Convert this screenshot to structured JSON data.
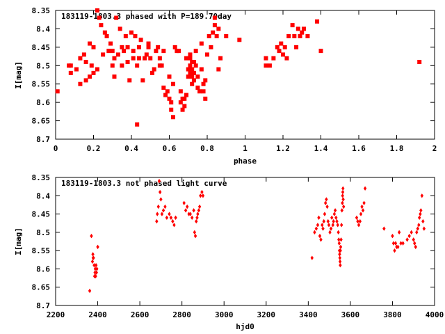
{
  "chart_data": [
    {
      "type": "scatter",
      "title": "183119-1803.3 phased with P=189.70day",
      "xlabel": "phase",
      "ylabel": "I[mag]",
      "xlim": [
        0,
        2
      ],
      "ylim": [
        8.7,
        8.35
      ],
      "y_inverted": true,
      "marker": "star",
      "xticks": [
        "0",
        "0.2",
        "0.4",
        "0.6",
        "0.8",
        "1",
        "1.2",
        "1.4",
        "1.6",
        "1.8",
        "2"
      ],
      "yticks": [
        "8.35",
        "8.4",
        "8.45",
        "8.5",
        "8.55",
        "8.6",
        "8.65",
        "8.7"
      ],
      "color": "#ff0000",
      "points": [
        [
          0.01,
          8.57
        ],
        [
          0.07,
          8.5
        ],
        [
          0.08,
          8.52
        ],
        [
          0.08,
          8.5
        ],
        [
          0.11,
          8.51
        ],
        [
          0.13,
          8.48
        ],
        [
          0.13,
          8.55
        ],
        [
          0.15,
          8.47
        ],
        [
          0.16,
          8.49
        ],
        [
          0.16,
          8.54
        ],
        [
          0.18,
          8.53
        ],
        [
          0.18,
          8.44
        ],
        [
          0.19,
          8.5
        ],
        [
          0.2,
          8.52
        ],
        [
          0.2,
          8.45
        ],
        [
          0.22,
          8.51
        ],
        [
          0.22,
          8.35
        ],
        [
          0.23,
          8.37
        ],
        [
          0.24,
          8.39
        ],
        [
          0.25,
          8.47
        ],
        [
          0.26,
          8.41
        ],
        [
          0.27,
          8.42
        ],
        [
          0.28,
          8.46
        ],
        [
          0.29,
          8.44
        ],
        [
          0.3,
          8.46
        ],
        [
          0.3,
          8.5
        ],
        [
          0.31,
          8.48
        ],
        [
          0.31,
          8.53
        ],
        [
          0.32,
          8.37
        ],
        [
          0.33,
          8.47
        ],
        [
          0.34,
          8.4
        ],
        [
          0.35,
          8.45
        ],
        [
          0.35,
          8.5
        ],
        [
          0.36,
          8.46
        ],
        [
          0.37,
          8.42
        ],
        [
          0.38,
          8.45
        ],
        [
          0.38,
          8.49
        ],
        [
          0.39,
          8.54
        ],
        [
          0.4,
          8.41
        ],
        [
          0.41,
          8.46
        ],
        [
          0.41,
          8.48
        ],
        [
          0.42,
          8.42
        ],
        [
          0.43,
          8.5
        ],
        [
          0.43,
          8.66
        ],
        [
          0.44,
          8.48
        ],
        [
          0.44,
          8.45
        ],
        [
          0.45,
          8.43
        ],
        [
          0.46,
          8.54
        ],
        [
          0.47,
          8.48
        ],
        [
          0.48,
          8.47
        ],
        [
          0.49,
          8.44
        ],
        [
          0.49,
          8.45
        ],
        [
          0.5,
          8.48
        ],
        [
          0.51,
          8.52
        ],
        [
          0.52,
          8.51
        ],
        [
          0.53,
          8.46
        ],
        [
          0.54,
          8.45
        ],
        [
          0.55,
          8.48
        ],
        [
          0.55,
          8.5
        ],
        [
          0.56,
          8.5
        ],
        [
          0.57,
          8.56
        ],
        [
          0.57,
          8.46
        ],
        [
          0.58,
          8.58
        ],
        [
          0.59,
          8.57
        ],
        [
          0.6,
          8.53
        ],
        [
          0.6,
          8.59
        ],
        [
          0.61,
          8.6
        ],
        [
          0.61,
          8.62
        ],
        [
          0.62,
          8.64
        ],
        [
          0.62,
          8.55
        ],
        [
          0.63,
          8.45
        ],
        [
          0.64,
          8.46
        ],
        [
          0.65,
          8.46
        ],
        [
          0.66,
          8.57
        ],
        [
          0.66,
          8.6
        ],
        [
          0.67,
          8.62
        ],
        [
          0.67,
          8.59
        ],
        [
          0.68,
          8.61
        ],
        [
          0.68,
          8.59
        ],
        [
          0.69,
          8.58
        ],
        [
          0.69,
          8.48
        ],
        [
          0.7,
          8.51
        ],
        [
          0.7,
          8.53
        ],
        [
          0.71,
          8.47
        ],
        [
          0.71,
          8.48
        ],
        [
          0.71,
          8.5
        ],
        [
          0.71,
          8.52
        ],
        [
          0.72,
          8.53
        ],
        [
          0.72,
          8.55
        ],
        [
          0.72,
          8.49
        ],
        [
          0.72,
          8.51
        ],
        [
          0.73,
          8.49
        ],
        [
          0.73,
          8.52
        ],
        [
          0.73,
          8.54
        ],
        [
          0.74,
          8.46
        ],
        [
          0.74,
          8.5
        ],
        [
          0.75,
          8.53
        ],
        [
          0.75,
          8.56
        ],
        [
          0.76,
          8.57
        ],
        [
          0.77,
          8.51
        ],
        [
          0.77,
          8.44
        ],
        [
          0.78,
          8.55
        ],
        [
          0.78,
          8.57
        ],
        [
          0.79,
          8.59
        ],
        [
          0.79,
          8.54
        ],
        [
          0.8,
          8.47
        ],
        [
          0.81,
          8.42
        ],
        [
          0.82,
          8.45
        ],
        [
          0.83,
          8.41
        ],
        [
          0.84,
          8.39
        ],
        [
          0.84,
          8.37
        ],
        [
          0.85,
          8.42
        ],
        [
          0.86,
          8.4
        ],
        [
          0.86,
          8.51
        ],
        [
          0.87,
          8.48
        ],
        [
          0.9,
          8.42
        ],
        [
          0.97,
          8.43
        ],
        [
          1.11,
          8.48
        ],
        [
          1.11,
          8.5
        ],
        [
          1.13,
          8.5
        ],
        [
          1.15,
          8.48
        ],
        [
          1.17,
          8.45
        ],
        [
          1.18,
          8.46
        ],
        [
          1.19,
          8.44
        ],
        [
          1.2,
          8.47
        ],
        [
          1.21,
          8.45
        ],
        [
          1.22,
          8.48
        ],
        [
          1.23,
          8.42
        ],
        [
          1.25,
          8.39
        ],
        [
          1.26,
          8.42
        ],
        [
          1.27,
          8.45
        ],
        [
          1.28,
          8.4
        ],
        [
          1.29,
          8.42
        ],
        [
          1.3,
          8.41
        ],
        [
          1.31,
          8.4
        ],
        [
          1.33,
          8.42
        ],
        [
          1.38,
          8.38
        ],
        [
          1.4,
          8.46
        ],
        [
          1.92,
          8.49
        ]
      ]
    },
    {
      "type": "scatter",
      "title": "183119-1803.3 not phased light curve",
      "xlabel": "hjd0",
      "ylabel": "I[mag]",
      "xlim": [
        2200,
        4000
      ],
      "ylim": [
        8.7,
        8.35
      ],
      "y_inverted": true,
      "marker": "diamond",
      "xticks": [
        "2200",
        "2400",
        "2600",
        "2800",
        "3000",
        "3200",
        "3400",
        "3600",
        "3800",
        "4000"
      ],
      "yticks": [
        "8.35",
        "8.4",
        "8.45",
        "8.5",
        "8.55",
        "8.6",
        "8.65",
        "8.7"
      ],
      "color": "#ff0000",
      "points": [
        [
          2362,
          8.66
        ],
        [
          2370,
          8.51
        ],
        [
          2375,
          8.58
        ],
        [
          2377,
          8.56
        ],
        [
          2378,
          8.57
        ],
        [
          2380,
          8.57
        ],
        [
          2383,
          8.59
        ],
        [
          2385,
          8.62
        ],
        [
          2387,
          8.61
        ],
        [
          2388,
          8.6
        ],
        [
          2390,
          8.62
        ],
        [
          2392,
          8.59
        ],
        [
          2394,
          8.61
        ],
        [
          2396,
          8.6
        ],
        [
          2400,
          8.54
        ],
        [
          2680,
          8.47
        ],
        [
          2683,
          8.45
        ],
        [
          2688,
          8.43
        ],
        [
          2692,
          8.36
        ],
        [
          2696,
          8.39
        ],
        [
          2700,
          8.41
        ],
        [
          2705,
          8.45
        ],
        [
          2712,
          8.44
        ],
        [
          2720,
          8.43
        ],
        [
          2728,
          8.46
        ],
        [
          2740,
          8.45
        ],
        [
          2748,
          8.46
        ],
        [
          2756,
          8.47
        ],
        [
          2763,
          8.48
        ],
        [
          2770,
          8.46
        ],
        [
          2810,
          8.42
        ],
        [
          2818,
          8.44
        ],
        [
          2825,
          8.43
        ],
        [
          2833,
          8.45
        ],
        [
          2840,
          8.45
        ],
        [
          2848,
          8.46
        ],
        [
          2856,
          8.44
        ],
        [
          2860,
          8.5
        ],
        [
          2864,
          8.51
        ],
        [
          2868,
          8.47
        ],
        [
          2872,
          8.46
        ],
        [
          2875,
          8.45
        ],
        [
          2880,
          8.44
        ],
        [
          2884,
          8.43
        ],
        [
          2888,
          8.4
        ],
        [
          2895,
          8.39
        ],
        [
          2900,
          8.4
        ],
        [
          3418,
          8.57
        ],
        [
          3430,
          8.5
        ],
        [
          3438,
          8.49
        ],
        [
          3445,
          8.48
        ],
        [
          3450,
          8.46
        ],
        [
          3455,
          8.51
        ],
        [
          3460,
          8.52
        ],
        [
          3466,
          8.48
        ],
        [
          3470,
          8.49
        ],
        [
          3474,
          8.47
        ],
        [
          3478,
          8.45
        ],
        [
          3482,
          8.42
        ],
        [
          3486,
          8.41
        ],
        [
          3490,
          8.43
        ],
        [
          3494,
          8.47
        ],
        [
          3498,
          8.48
        ],
        [
          3503,
          8.5
        ],
        [
          3508,
          8.49
        ],
        [
          3512,
          8.46
        ],
        [
          3517,
          8.48
        ],
        [
          3520,
          8.47
        ],
        [
          3524,
          8.45
        ],
        [
          3528,
          8.44
        ],
        [
          3532,
          8.46
        ],
        [
          3536,
          8.47
        ],
        [
          3540,
          8.48
        ],
        [
          3543,
          8.5
        ],
        [
          3545,
          8.52
        ],
        [
          3547,
          8.53
        ],
        [
          3548,
          8.55
        ],
        [
          3549,
          8.56
        ],
        [
          3550,
          8.57
        ],
        [
          3551,
          8.58
        ],
        [
          3552,
          8.59
        ],
        [
          3553,
          8.55
        ],
        [
          3554,
          8.54
        ],
        [
          3556,
          8.52
        ],
        [
          3558,
          8.48
        ],
        [
          3560,
          8.44
        ],
        [
          3562,
          8.42
        ],
        [
          3563,
          8.4
        ],
        [
          3564,
          8.39
        ],
        [
          3565,
          8.38
        ],
        [
          3566,
          8.41
        ],
        [
          3568,
          8.43
        ],
        [
          3630,
          8.46
        ],
        [
          3635,
          8.47
        ],
        [
          3640,
          8.48
        ],
        [
          3646,
          8.47
        ],
        [
          3650,
          8.45
        ],
        [
          3655,
          8.43
        ],
        [
          3660,
          8.44
        ],
        [
          3665,
          8.42
        ],
        [
          3670,
          8.38
        ],
        [
          3760,
          8.49
        ],
        [
          3800,
          8.51
        ],
        [
          3805,
          8.53
        ],
        [
          3810,
          8.55
        ],
        [
          3815,
          8.53
        ],
        [
          3820,
          8.54
        ],
        [
          3826,
          8.54
        ],
        [
          3832,
          8.5
        ],
        [
          3840,
          8.53
        ],
        [
          3850,
          8.53
        ],
        [
          3870,
          8.52
        ],
        [
          3880,
          8.51
        ],
        [
          3890,
          8.5
        ],
        [
          3900,
          8.52
        ],
        [
          3905,
          8.53
        ],
        [
          3910,
          8.54
        ],
        [
          3915,
          8.5
        ],
        [
          3920,
          8.49
        ],
        [
          3925,
          8.48
        ],
        [
          3928,
          8.46
        ],
        [
          3932,
          8.45
        ],
        [
          3935,
          8.44
        ],
        [
          3940,
          8.4
        ],
        [
          3945,
          8.47
        ],
        [
          3950,
          8.49
        ]
      ]
    }
  ]
}
